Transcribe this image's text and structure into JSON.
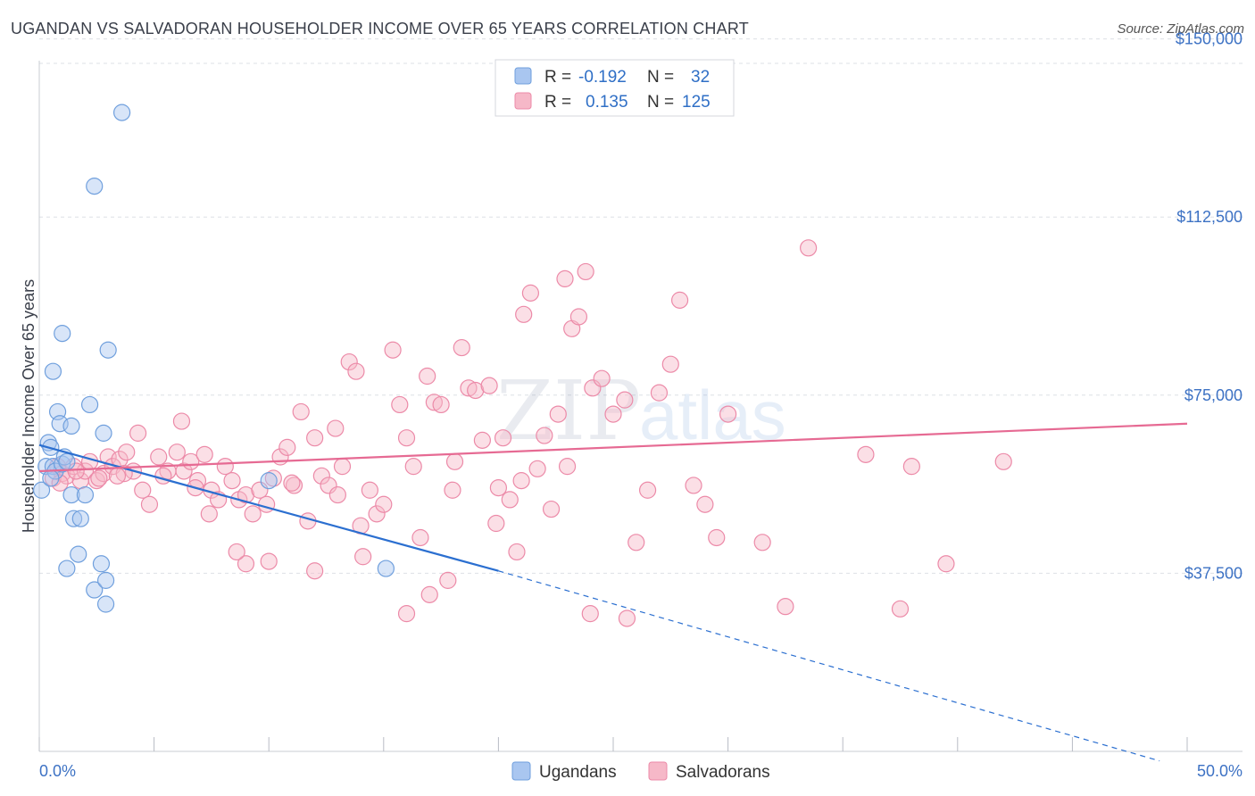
{
  "header": {
    "title": "UGANDAN VS SALVADORAN HOUSEHOLDER INCOME OVER 65 YEARS CORRELATION CHART",
    "source": "Source: ZipAtlas.com"
  },
  "watermark": {
    "zip": "ZIP",
    "atlas": "atlas"
  },
  "legend": {
    "r_label": "R =",
    "n_label": "N =",
    "rows": [
      {
        "r": "-0.192",
        "n": "32",
        "color": "#a9c6f0"
      },
      {
        "r": "0.135",
        "n": "125",
        "color": "#f6b8c8"
      }
    ]
  },
  "chart_data": {
    "type": "scatter",
    "ylabel": "Householder Income Over 65 years",
    "xlim": [
      0,
      50
    ],
    "ylim": [
      0,
      155000
    ],
    "x_tick_labels": [
      "0.0%",
      "50.0%"
    ],
    "y_ticks": [
      37500,
      75000,
      112500,
      150000
    ],
    "y_tick_labels": [
      "$37,500",
      "$75,000",
      "$112,500",
      "$150,000"
    ],
    "grid": true,
    "series": [
      {
        "name": "Ugandans",
        "color": "#a9c6f0",
        "stroke": "#6f9fdd",
        "line_color": "#2b6fd0",
        "trend": {
          "x0": 0,
          "y0": 64500,
          "x1": 20,
          "y1": 38000,
          "dash_to_x": 48.8,
          "dash_to_y": -2000
        },
        "points": [
          [
            0.1,
            55000
          ],
          [
            0.3,
            60000
          ],
          [
            0.4,
            65000
          ],
          [
            0.5,
            64000
          ],
          [
            0.6,
            60000
          ],
          [
            0.7,
            59000
          ],
          [
            0.8,
            71500
          ],
          [
            0.9,
            69000
          ],
          [
            1.0,
            60500
          ],
          [
            1.1,
            62000
          ],
          [
            1.2,
            61000
          ],
          [
            1.4,
            54000
          ],
          [
            1.5,
            49000
          ],
          [
            1.4,
            68500
          ],
          [
            1.7,
            41500
          ],
          [
            1.8,
            49000
          ],
          [
            2.0,
            54000
          ],
          [
            2.2,
            73000
          ],
          [
            2.4,
            34000
          ],
          [
            2.7,
            39500
          ],
          [
            2.9,
            36000
          ],
          [
            1.0,
            88000
          ],
          [
            0.6,
            80000
          ],
          [
            3.0,
            84500
          ],
          [
            2.4,
            119000
          ],
          [
            3.6,
            134500
          ],
          [
            2.8,
            67000
          ],
          [
            1.2,
            38500
          ],
          [
            2.9,
            31000
          ],
          [
            10.0,
            57000
          ],
          [
            15.1,
            38500
          ],
          [
            0.5,
            57500
          ]
        ]
      },
      {
        "name": "Salvadorans",
        "color": "#f6b8c8",
        "stroke": "#ec8aa8",
        "line_color": "#e66a93",
        "trend": {
          "x0": 0,
          "y0": 59000,
          "x1": 50,
          "y1": 69000
        },
        "points": [
          [
            0.6,
            57500
          ],
          [
            0.8,
            60000
          ],
          [
            1.0,
            58500
          ],
          [
            1.2,
            58000
          ],
          [
            1.5,
            60000
          ],
          [
            1.8,
            57000
          ],
          [
            2.0,
            59000
          ],
          [
            2.2,
            61000
          ],
          [
            2.5,
            57000
          ],
          [
            2.8,
            58500
          ],
          [
            3.0,
            62000
          ],
          [
            3.2,
            60000
          ],
          [
            3.5,
            61500
          ],
          [
            3.8,
            63000
          ],
          [
            4.1,
            59000
          ],
          [
            4.5,
            55000
          ],
          [
            4.8,
            52000
          ],
          [
            5.2,
            62000
          ],
          [
            5.6,
            59000
          ],
          [
            6.0,
            63000
          ],
          [
            6.3,
            59000
          ],
          [
            6.6,
            61000
          ],
          [
            6.9,
            57000
          ],
          [
            7.2,
            62500
          ],
          [
            7.5,
            55000
          ],
          [
            7.8,
            53000
          ],
          [
            8.1,
            60000
          ],
          [
            8.4,
            57000
          ],
          [
            8.7,
            53000
          ],
          [
            9.0,
            54000
          ],
          [
            9.3,
            50000
          ],
          [
            9.6,
            55000
          ],
          [
            9.9,
            52000
          ],
          [
            10.2,
            57500
          ],
          [
            10.5,
            62000
          ],
          [
            10.8,
            64000
          ],
          [
            11.1,
            56000
          ],
          [
            11.4,
            71500
          ],
          [
            11.7,
            48500
          ],
          [
            12.0,
            66000
          ],
          [
            12.3,
            58000
          ],
          [
            12.6,
            56000
          ],
          [
            12.9,
            68000
          ],
          [
            13.2,
            60000
          ],
          [
            13.5,
            82000
          ],
          [
            13.8,
            80000
          ],
          [
            14.1,
            41000
          ],
          [
            14.4,
            55000
          ],
          [
            14.7,
            50000
          ],
          [
            15.0,
            52000
          ],
          [
            15.4,
            84500
          ],
          [
            15.7,
            73000
          ],
          [
            16.0,
            66000
          ],
          [
            16.3,
            60000
          ],
          [
            16.6,
            45000
          ],
          [
            16.9,
            79000
          ],
          [
            17.2,
            73500
          ],
          [
            17.5,
            73000
          ],
          [
            17.8,
            36000
          ],
          [
            18.1,
            61000
          ],
          [
            18.4,
            85000
          ],
          [
            18.7,
            76500
          ],
          [
            19.0,
            76000
          ],
          [
            19.3,
            65500
          ],
          [
            19.6,
            77000
          ],
          [
            19.9,
            48000
          ],
          [
            20.2,
            66000
          ],
          [
            20.5,
            53000
          ],
          [
            20.8,
            42000
          ],
          [
            21.1,
            92000
          ],
          [
            21.4,
            96500
          ],
          [
            21.7,
            59500
          ],
          [
            22.0,
            66500
          ],
          [
            22.3,
            51000
          ],
          [
            22.6,
            71000
          ],
          [
            22.9,
            99500
          ],
          [
            23.2,
            89000
          ],
          [
            23.5,
            91500
          ],
          [
            23.8,
            101000
          ],
          [
            24.1,
            76500
          ],
          [
            24.5,
            78500
          ],
          [
            25.0,
            71000
          ],
          [
            25.5,
            74000
          ],
          [
            26.0,
            44000
          ],
          [
            26.5,
            55000
          ],
          [
            27.0,
            75500
          ],
          [
            27.5,
            81500
          ],
          [
            27.9,
            95000
          ],
          [
            28.5,
            56000
          ],
          [
            29.0,
            52000
          ],
          [
            29.5,
            45000
          ],
          [
            30.0,
            71000
          ],
          [
            31.5,
            44000
          ],
          [
            32.5,
            30500
          ],
          [
            33.5,
            106000
          ],
          [
            36.0,
            62500
          ],
          [
            37.5,
            30000
          ],
          [
            38.0,
            60000
          ],
          [
            39.5,
            39500
          ],
          [
            42.0,
            61000
          ],
          [
            23.0,
            60000
          ],
          [
            20.0,
            55500
          ],
          [
            16.0,
            29000
          ],
          [
            17.0,
            33000
          ],
          [
            12.0,
            38000
          ],
          [
            10.0,
            40000
          ],
          [
            9.0,
            39500
          ],
          [
            8.6,
            42000
          ],
          [
            7.4,
            50000
          ],
          [
            6.8,
            55500
          ],
          [
            5.4,
            58000
          ],
          [
            3.7,
            58500
          ],
          [
            2.6,
            57500
          ],
          [
            1.6,
            59000
          ],
          [
            0.9,
            56500
          ],
          [
            24.0,
            29000
          ],
          [
            25.6,
            28000
          ],
          [
            18.0,
            55000
          ],
          [
            14.0,
            47500
          ],
          [
            11.0,
            56500
          ],
          [
            13.0,
            54000
          ],
          [
            6.2,
            69500
          ],
          [
            4.3,
            67000
          ],
          [
            3.4,
            58000
          ],
          [
            21.0,
            57000
          ]
        ]
      }
    ]
  }
}
